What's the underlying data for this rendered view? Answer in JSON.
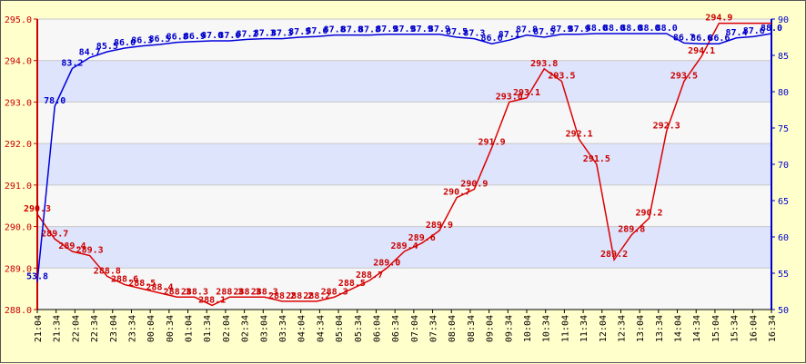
{
  "chart_data": {
    "type": "line",
    "grid": true,
    "x": [
      "21:04",
      "21:34",
      "22:04",
      "22:34",
      "23:04",
      "23:34",
      "00:04",
      "00:34",
      "01:04",
      "01:34",
      "02:04",
      "02:34",
      "03:04",
      "03:34",
      "04:04",
      "04:34",
      "05:04",
      "05:34",
      "06:04",
      "06:34",
      "07:04",
      "07:34",
      "08:04",
      "08:34",
      "09:04",
      "09:34",
      "10:04",
      "10:34",
      "11:04",
      "11:34",
      "12:04",
      "12:34",
      "13:04",
      "13:34",
      "14:04",
      "14:34",
      "15:04",
      "15:34",
      "16:04",
      "16:34"
    ],
    "y_left": {
      "ylim": [
        288.0,
        295.0
      ],
      "ticks": [
        "288.0",
        "289.0",
        "290.0",
        "291.0",
        "292.0",
        "293.0",
        "294.0",
        "295.0"
      ],
      "color": "#cc0000"
    },
    "y_right": {
      "ylim": [
        50,
        90
      ],
      "ticks": [
        "50",
        "55",
        "60",
        "65",
        "70",
        "75",
        "80",
        "85",
        "90"
      ],
      "color": "#0000cc"
    },
    "series": [
      {
        "axis": "left",
        "color": "#dd0000",
        "x": [
          0,
          1,
          2,
          3,
          4,
          5,
          6,
          7,
          8,
          9,
          10,
          11,
          12,
          13,
          14,
          15,
          16,
          17,
          18,
          19,
          20,
          21,
          22,
          23,
          24,
          25,
          26,
          27,
          28,
          29,
          30,
          31,
          32,
          33,
          34,
          35,
          36,
          37,
          38,
          39,
          40,
          41,
          42
        ],
        "values": [
          290.3,
          289.7,
          289.4,
          289.3,
          288.8,
          288.6,
          288.5,
          288.4,
          288.3,
          288.3,
          288.1,
          288.3,
          288.3,
          288.3,
          288.2,
          288.2,
          288.2,
          288.3,
          288.5,
          288.7,
          289.0,
          289.4,
          289.6,
          289.9,
          290.7,
          290.9,
          291.9,
          293.0,
          293.1,
          293.8,
          293.5,
          292.1,
          291.5,
          289.2,
          289.8,
          290.2,
          292.3,
          293.5,
          294.1,
          294.9,
          294.9,
          294.9,
          294.9
        ],
        "labels": [
          "290.3",
          "289.7",
          "289.4",
          "289.3",
          "288.8",
          "288.6",
          "288.5",
          "288.4",
          "288.3",
          "288.3",
          "288.1",
          "288.3",
          "288.3",
          "288.3",
          "288.2",
          "288.2",
          "288.2",
          "288.3",
          "288.5",
          "288.7",
          "289.0",
          "289.4",
          "289.6",
          "289.9",
          "290.7",
          "290.9",
          "291.9",
          "293.0",
          "293.1",
          "293.8",
          "293.5",
          "292.1",
          "291.5",
          "289.2",
          "289.8",
          "290.2",
          "292.3",
          "293.5",
          "294.1",
          "294.9",
          "",
          "",
          ""
        ]
      },
      {
        "axis": "right",
        "color": "#0000dd",
        "x": [
          0,
          1,
          2,
          3,
          4,
          5,
          6,
          7,
          8,
          9,
          10,
          11,
          12,
          13,
          14,
          15,
          16,
          17,
          18,
          19,
          20,
          21,
          22,
          23,
          24,
          25,
          26,
          27,
          28,
          29,
          30,
          31,
          32,
          33,
          34,
          35,
          36,
          37,
          38,
          39,
          40,
          41,
          42
        ],
        "values": [
          53.8,
          78.0,
          83.2,
          84.7,
          85.5,
          86.0,
          86.3,
          86.5,
          86.8,
          86.9,
          87.0,
          87.0,
          87.2,
          87.3,
          87.3,
          87.5,
          87.6,
          87.8,
          87.8,
          87.8,
          87.9,
          87.9,
          87.9,
          87.9,
          87.5,
          87.3,
          86.6,
          87.1,
          87.8,
          87.5,
          87.9,
          87.9,
          88.0,
          88.0,
          88.0,
          88.0,
          88.0,
          86.7,
          86.6,
          86.6,
          87.4,
          87.6,
          88.0
        ],
        "labels": [
          "53.8",
          "78.0",
          "83.2",
          "84.7",
          "85.5",
          "86.0",
          "86.3",
          "86.5",
          "86.8",
          "86.9",
          "87.0",
          "87.0",
          "87.2",
          "87.3",
          "87.3",
          "87.5",
          "87.6",
          "87.8",
          "87.8",
          "87.8",
          "87.9",
          "87.9",
          "87.9",
          "87.9",
          "87.5",
          "87.3",
          "86.6",
          "87.1",
          "87.8",
          "87.5",
          "87.9",
          "87.9",
          "88.0",
          "88.0",
          "88.0",
          "88.0",
          "88.0",
          "86.7",
          "86.6",
          "86.6",
          "87.4",
          "87.6",
          "88.0"
        ]
      }
    ]
  }
}
